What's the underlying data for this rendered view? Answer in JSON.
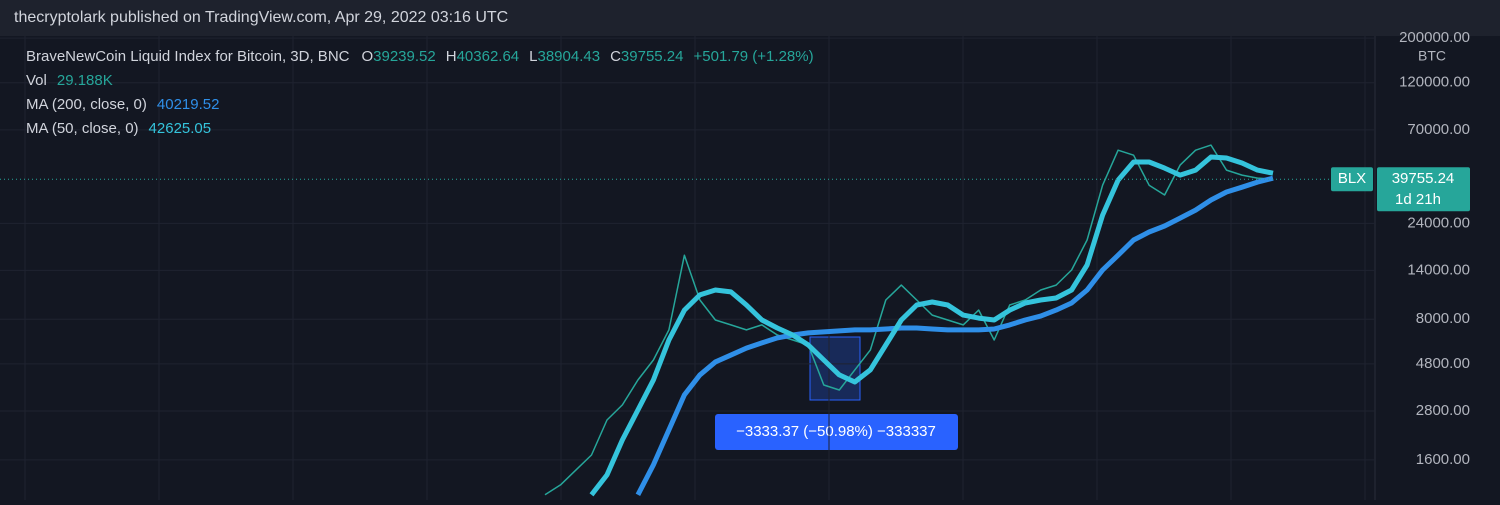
{
  "header": "thecryptolark published on TradingView.com, Apr 29, 2022 03:16 UTC",
  "chart_data": {
    "type": "line",
    "title": "BraveNewCoin Liquid Index for Bitcoin, 3D, BNC",
    "ohlc": [
      {
        "label": "O",
        "value": 39239.52
      },
      {
        "label": "H",
        "value": 40362.64
      },
      {
        "label": "L",
        "value": 38904.43
      },
      {
        "label": "C",
        "value": 39755.24
      }
    ],
    "change": "+501.79 (+1.28%)",
    "volume": {
      "label": "Vol",
      "value": "29.188K"
    },
    "currency": "BTC",
    "symbol": "BLX",
    "countdown": "1d 21h",
    "measure": "−3333.37 (−50.98%) −333337",
    "log_scale": true,
    "grid": true,
    "ylim": [
      1010,
      205000
    ],
    "yticks": [
      {
        "value": 1600,
        "label": "1600.00"
      },
      {
        "value": 2800,
        "label": "2800.00"
      },
      {
        "value": 4800,
        "label": "4800.00"
      },
      {
        "value": 8000,
        "label": "8000.00"
      },
      {
        "value": 14000,
        "label": "14000.00"
      },
      {
        "value": 24000,
        "label": "24000.00"
      },
      {
        "value": 70000,
        "label": "70000.00"
      },
      {
        "value": 120000,
        "label": "120000.00"
      },
      {
        "value": 200000,
        "label": "200000.00"
      }
    ],
    "categories": [
      null,
      null,
      null,
      null,
      null,
      null,
      null,
      null,
      null,
      null,
      null,
      null,
      null,
      null,
      null,
      null,
      null,
      null,
      null,
      null,
      null,
      null,
      null,
      null,
      null,
      null,
      null,
      null,
      null,
      null,
      null,
      null,
      null,
      null,
      null,
      null,
      null,
      null,
      null,
      null,
      null,
      null,
      null,
      null,
      null,
      null,
      null,
      null
    ],
    "series": [
      {
        "name": "BLX",
        "color": "#26a69a",
        "values": [
          1072,
          1200,
          1426,
          1690,
          2523,
          3000,
          3990,
          5020,
          7080,
          16670,
          9980,
          7930,
          7500,
          7080,
          7500,
          6680,
          6310,
          5960,
          3770,
          3560,
          4480,
          5620,
          9980,
          11830,
          9980,
          8390,
          7930,
          7500,
          8890,
          6310,
          9420,
          9980,
          11190,
          11830,
          14060,
          19820,
          37150,
          55460,
          52360,
          37150,
          33190,
          46770,
          55460,
          58750,
          44160,
          41690,
          40270,
          39755.24
        ]
      },
      {
        "name": "MA (200, close, 0)",
        "color": "#2f8fe8",
        "last_value": 40219.52,
        "values": [
          null,
          null,
          null,
          null,
          null,
          null,
          1072,
          1510,
          2254,
          3365,
          4230,
          4910,
          5310,
          5750,
          6100,
          6460,
          6680,
          6840,
          6920,
          7000,
          7080,
          7080,
          7160,
          7240,
          7240,
          7160,
          7080,
          7080,
          7080,
          7160,
          7500,
          7930,
          8300,
          8890,
          9640,
          11190,
          14060,
          16670,
          19820,
          21730,
          23280,
          25470,
          27920,
          31330,
          34360,
          36310,
          38460,
          40219.52
        ]
      },
      {
        "name": "MA (50, close, 0)",
        "color": "#35c4dc",
        "last_value": 42625.05,
        "values": [
          null,
          null,
          null,
          1072,
          1346,
          2009,
          2831,
          3990,
          6310,
          8890,
          10570,
          11190,
          10940,
          9420,
          7930,
          7240,
          6680,
          5960,
          5020,
          4230,
          3900,
          4480,
          5960,
          7930,
          9420,
          9750,
          9420,
          8390,
          8110,
          7930,
          8890,
          9640,
          9980,
          10210,
          11190,
          14890,
          26360,
          39360,
          48420,
          48420,
          45190,
          41690,
          44160,
          51290,
          50700,
          47860,
          44160,
          42625.05
        ]
      }
    ]
  }
}
